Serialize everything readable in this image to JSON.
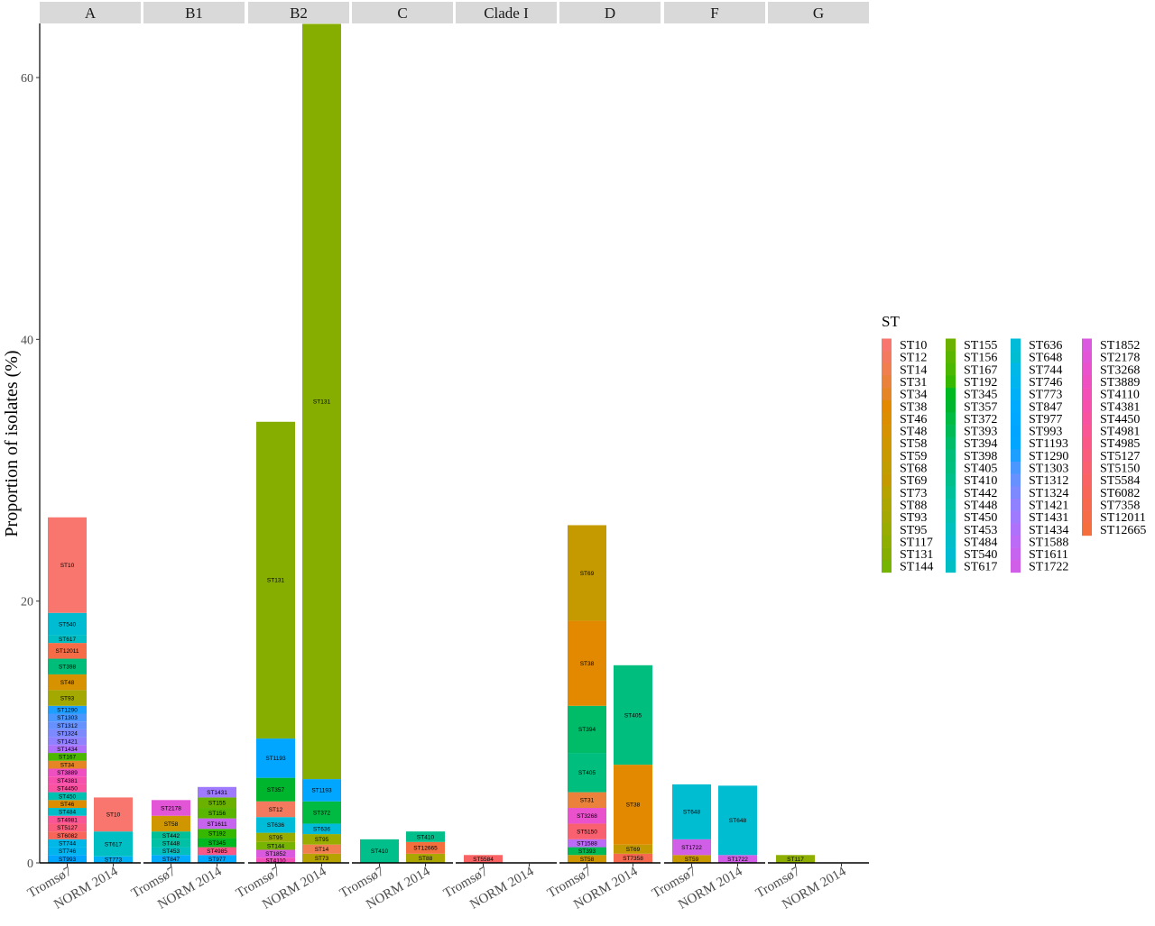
{
  "chart_data": {
    "type": "bar",
    "stacked": true,
    "facets": [
      "A",
      "B1",
      "B2",
      "C",
      "Clade I",
      "D",
      "F",
      "G"
    ],
    "categories": [
      "Tromsø7",
      "NORM 2014"
    ],
    "ylabel": "Proportion of isolates (%)",
    "xlabel": "",
    "ylim": [
      0,
      64
    ],
    "yticks": [
      0,
      20,
      40,
      60
    ],
    "grid": false,
    "legend": {
      "title": "ST",
      "position": "right",
      "entries": [
        {
          "name": "ST10",
          "color": "#F8766D"
        },
        {
          "name": "ST12",
          "color": "#F47A5F"
        },
        {
          "name": "ST14",
          "color": "#F07E4F"
        },
        {
          "name": "ST31",
          "color": "#EB823C"
        },
        {
          "name": "ST34",
          "color": "#E58526"
        },
        {
          "name": "ST38",
          "color": "#E38900"
        },
        {
          "name": "ST46",
          "color": "#DC8E00"
        },
        {
          "name": "ST48",
          "color": "#D69200"
        },
        {
          "name": "ST58",
          "color": "#D09600"
        },
        {
          "name": "ST59",
          "color": "#C99A00"
        },
        {
          "name": "ST68",
          "color": "#C19D00"
        },
        {
          "name": "ST69",
          "color": "#C49A00"
        },
        {
          "name": "ST73",
          "color": "#B6A300"
        },
        {
          "name": "ST88",
          "color": "#ACA600"
        },
        {
          "name": "ST93",
          "color": "#A3A900"
        },
        {
          "name": "ST95",
          "color": "#99AC00"
        },
        {
          "name": "ST117",
          "color": "#8EAF00"
        },
        {
          "name": "ST131",
          "color": "#86AE00"
        },
        {
          "name": "ST144",
          "color": "#75B400"
        },
        {
          "name": "ST155",
          "color": "#6BB100"
        },
        {
          "name": "ST156",
          "color": "#5AB500"
        },
        {
          "name": "ST167",
          "color": "#4CB700"
        },
        {
          "name": "ST192",
          "color": "#37B800"
        },
        {
          "name": "ST345",
          "color": "#00B81F"
        },
        {
          "name": "ST357",
          "color": "#00B52E"
        },
        {
          "name": "ST372",
          "color": "#00BA42"
        },
        {
          "name": "ST393",
          "color": "#00BB55"
        },
        {
          "name": "ST394",
          "color": "#00BC68"
        },
        {
          "name": "ST398",
          "color": "#00BD79"
        },
        {
          "name": "ST405",
          "color": "#00BE7D"
        },
        {
          "name": "ST410",
          "color": "#00BF8A"
        },
        {
          "name": "ST442",
          "color": "#00C099"
        },
        {
          "name": "ST448",
          "color": "#00C0A5"
        },
        {
          "name": "ST450",
          "color": "#00C0B2"
        },
        {
          "name": "ST453",
          "color": "#00BFBE"
        },
        {
          "name": "ST484",
          "color": "#00BEC9"
        },
        {
          "name": "ST540",
          "color": "#00BCD3"
        },
        {
          "name": "ST617",
          "color": "#00BFC4"
        },
        {
          "name": "ST636",
          "color": "#00BCD8"
        },
        {
          "name": "ST648",
          "color": "#00BDD2"
        },
        {
          "name": "ST744",
          "color": "#00B8E7"
        },
        {
          "name": "ST746",
          "color": "#00B5EE"
        },
        {
          "name": "ST773",
          "color": "#00B0F6"
        },
        {
          "name": "ST847",
          "color": "#00ABFD"
        },
        {
          "name": "ST977",
          "color": "#00A9FF"
        },
        {
          "name": "ST993",
          "color": "#00A5FF"
        },
        {
          "name": "ST1193",
          "color": "#00A6FF"
        },
        {
          "name": "ST1290",
          "color": "#1C9FFF"
        },
        {
          "name": "ST1303",
          "color": "#4A98FF"
        },
        {
          "name": "ST1312",
          "color": "#6691FF"
        },
        {
          "name": "ST1324",
          "color": "#7C89FF"
        },
        {
          "name": "ST1421",
          "color": "#8F81FF"
        },
        {
          "name": "ST1431",
          "color": "#9F7AFE"
        },
        {
          "name": "ST1434",
          "color": "#AE72FA"
        },
        {
          "name": "ST1588",
          "color": "#BB6BF5"
        },
        {
          "name": "ST1611",
          "color": "#C764EF"
        },
        {
          "name": "ST1722",
          "color": "#D15EE7"
        },
        {
          "name": "ST1852",
          "color": "#DA59DF"
        },
        {
          "name": "ST2178",
          "color": "#E255D6"
        },
        {
          "name": "ST3268",
          "color": "#E952CC"
        },
        {
          "name": "ST3889",
          "color": "#EE50C2"
        },
        {
          "name": "ST4110",
          "color": "#F350B7"
        },
        {
          "name": "ST4381",
          "color": "#F650AC"
        },
        {
          "name": "ST4450",
          "color": "#F852A0"
        },
        {
          "name": "ST4981",
          "color": "#FA5594"
        },
        {
          "name": "ST4985",
          "color": "#FA5988"
        },
        {
          "name": "ST5127",
          "color": "#FA5D7C"
        },
        {
          "name": "ST5150",
          "color": "#FA6170"
        },
        {
          "name": "ST5584",
          "color": "#F96364"
        },
        {
          "name": "ST6082",
          "color": "#F8665A"
        },
        {
          "name": "ST7358",
          "color": "#F7694F"
        },
        {
          "name": "ST12011",
          "color": "#F66C46"
        },
        {
          "name": "ST12665",
          "color": "#F56E3E"
        }
      ]
    },
    "bars": [
      {
        "facet": "A",
        "category": "Tromsø7",
        "segments": [
          {
            "st": "ST993",
            "value": 0.6
          },
          {
            "st": "ST746",
            "value": 0.6
          },
          {
            "st": "ST744",
            "value": 0.6
          },
          {
            "st": "ST6082",
            "value": 0.6
          },
          {
            "st": "ST5127",
            "value": 0.6
          },
          {
            "st": "ST4981",
            "value": 0.6
          },
          {
            "st": "ST484",
            "value": 0.6
          },
          {
            "st": "ST46",
            "value": 0.6
          },
          {
            "st": "ST450",
            "value": 0.6
          },
          {
            "st": "ST4450",
            "value": 0.6
          },
          {
            "st": "ST4381",
            "value": 0.6
          },
          {
            "st": "ST3889",
            "value": 0.6
          },
          {
            "st": "ST34",
            "value": 0.6
          },
          {
            "st": "ST167",
            "value": 0.6
          },
          {
            "st": "ST1434",
            "value": 0.6
          },
          {
            "st": "ST1421",
            "value": 0.6
          },
          {
            "st": "ST1324",
            "value": 0.6
          },
          {
            "st": "ST1312",
            "value": 0.6
          },
          {
            "st": "ST1303",
            "value": 0.6
          },
          {
            "st": "ST1290",
            "value": 0.6
          },
          {
            "st": "ST93",
            "value": 1.2
          },
          {
            "st": "ST48",
            "value": 1.2
          },
          {
            "st": "ST398",
            "value": 1.2
          },
          {
            "st": "ST12011",
            "value": 1.2
          },
          {
            "st": "ST617",
            "value": 0.6
          },
          {
            "st": "ST540",
            "value": 1.7
          },
          {
            "st": "ST10",
            "value": 7.3
          }
        ]
      },
      {
        "facet": "A",
        "category": "NORM 2014",
        "segments": [
          {
            "st": "ST773",
            "value": 0.5
          },
          {
            "st": "ST617",
            "value": 1.9
          },
          {
            "st": "ST10",
            "value": 2.6
          }
        ]
      },
      {
        "facet": "B1",
        "category": "Tromsø7",
        "segments": [
          {
            "st": "ST847",
            "value": 0.6
          },
          {
            "st": "ST453",
            "value": 0.6
          },
          {
            "st": "ST448",
            "value": 0.6
          },
          {
            "st": "ST442",
            "value": 0.6
          },
          {
            "st": "ST58",
            "value": 1.2
          },
          {
            "st": "ST2178",
            "value": 1.2
          }
        ]
      },
      {
        "facet": "B1",
        "category": "NORM 2014",
        "segments": [
          {
            "st": "ST977",
            "value": 0.6
          },
          {
            "st": "ST4985",
            "value": 0.6
          },
          {
            "st": "ST345",
            "value": 0.7
          },
          {
            "st": "ST192",
            "value": 0.7
          },
          {
            "st": "ST1611",
            "value": 0.8
          },
          {
            "st": "ST156",
            "value": 0.8
          },
          {
            "st": "ST155",
            "value": 0.8
          },
          {
            "st": "ST1431",
            "value": 0.8
          }
        ]
      },
      {
        "facet": "B2",
        "category": "Tromsø7",
        "segments": [
          {
            "st": "ST4110",
            "value": 0.4
          },
          {
            "st": "ST1852",
            "value": 0.6
          },
          {
            "st": "ST144",
            "value": 0.6
          },
          {
            "st": "ST95",
            "value": 0.7
          },
          {
            "st": "ST636",
            "value": 1.2
          },
          {
            "st": "ST12",
            "value": 1.2
          },
          {
            "st": "ST357",
            "value": 1.8
          },
          {
            "st": "ST1193",
            "value": 3.0
          },
          {
            "st": "ST131",
            "value": 24.2
          }
        ]
      },
      {
        "facet": "B2",
        "category": "NORM 2014",
        "segments": [
          {
            "st": "ST73",
            "value": 0.7
          },
          {
            "st": "ST14",
            "value": 0.7
          },
          {
            "st": "ST95",
            "value": 0.8
          },
          {
            "st": "ST636",
            "value": 0.8
          },
          {
            "st": "ST372",
            "value": 1.7
          },
          {
            "st": "ST1193",
            "value": 1.7
          },
          {
            "st": "ST131",
            "value": 57.7
          }
        ]
      },
      {
        "facet": "C",
        "category": "Tromsø7",
        "segments": [
          {
            "st": "ST410",
            "value": 1.8
          }
        ]
      },
      {
        "facet": "C",
        "category": "NORM 2014",
        "segments": [
          {
            "st": "ST88",
            "value": 0.7
          },
          {
            "st": "ST12665",
            "value": 0.9
          },
          {
            "st": "ST410",
            "value": 0.8
          }
        ]
      },
      {
        "facet": "Clade I",
        "category": "Tromsø7",
        "segments": [
          {
            "st": "ST5584",
            "value": 0.6
          }
        ]
      },
      {
        "facet": "D",
        "category": "Tromsø7",
        "segments": [
          {
            "st": "ST58",
            "value": 0.6
          },
          {
            "st": "ST393",
            "value": 0.6
          },
          {
            "st": "ST1588",
            "value": 0.6
          },
          {
            "st": "ST5150",
            "value": 1.2
          },
          {
            "st": "ST3268",
            "value": 1.2
          },
          {
            "st": "ST31",
            "value": 1.2
          },
          {
            "st": "ST405",
            "value": 3.0
          },
          {
            "st": "ST394",
            "value": 3.6
          },
          {
            "st": "ST38",
            "value": 6.5
          },
          {
            "st": "ST69",
            "value": 7.3
          }
        ]
      },
      {
        "facet": "D",
        "category": "NORM 2014",
        "segments": [
          {
            "st": "ST7358",
            "value": 0.7
          },
          {
            "st": "ST69",
            "value": 0.7
          },
          {
            "st": "ST38",
            "value": 6.1
          },
          {
            "st": "ST405",
            "value": 7.6
          }
        ]
      },
      {
        "facet": "F",
        "category": "Tromsø7",
        "segments": [
          {
            "st": "ST59",
            "value": 0.6
          },
          {
            "st": "ST1722",
            "value": 1.2
          },
          {
            "st": "ST648",
            "value": 4.2
          }
        ]
      },
      {
        "facet": "F",
        "category": "NORM 2014",
        "segments": [
          {
            "st": "ST1722",
            "value": 0.6
          },
          {
            "st": "ST648",
            "value": 5.3
          }
        ]
      },
      {
        "facet": "G",
        "category": "Tromsø7",
        "segments": [
          {
            "st": "ST117",
            "value": 0.6
          }
        ]
      }
    ]
  }
}
